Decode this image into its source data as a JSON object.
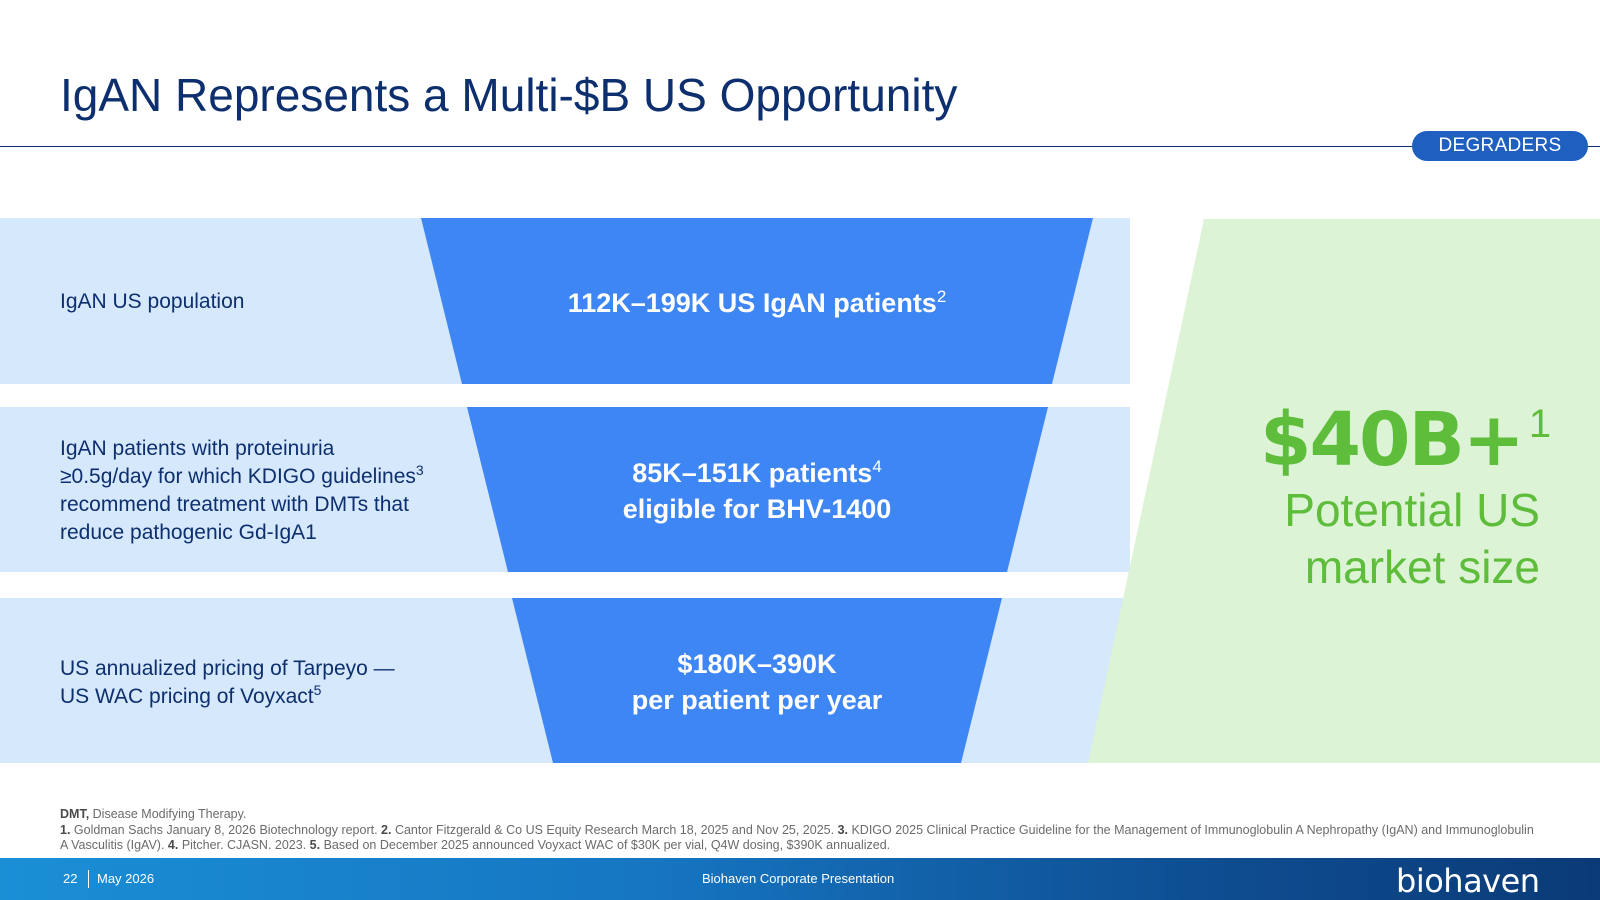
{
  "header": {
    "title": "IgAN Represents a Multi-$B US Opportunity",
    "badge": "DEGRADERS"
  },
  "rows": [
    {
      "label_lines": [
        "IgAN US population"
      ],
      "funnel_main": "112K–199K US IgAN patients",
      "funnel_sup": "2",
      "funnel_line2": ""
    },
    {
      "label_lines": [
        "IgAN patients with proteinuria",
        "≥0.5g/day for which KDIGO guidelines",
        "recommend treatment with DMTs that",
        "reduce pathogenic Gd-IgA1"
      ],
      "label_sup": "3",
      "funnel_main": "85K–151K patients",
      "funnel_sup": "4",
      "funnel_line2": "eligible for BHV-1400"
    },
    {
      "label_lines": [
        "US annualized pricing of Tarpeyo —",
        "US WAC pricing of Voyxact"
      ],
      "label_sup": "5",
      "funnel_main": "$180K–390K",
      "funnel_line2": "per patient per year"
    }
  ],
  "market": {
    "value": "$40B+",
    "value_sup": "1",
    "caption_line1": "Potential US",
    "caption_line2": "market size"
  },
  "footnotes": {
    "dmt_abbr": "DMT,",
    "dmt_def": " Disease Modifying Therapy.",
    "n1": "1.",
    "t1": " Goldman Sachs January 8, 2026 Biotechnology report. ",
    "n2": "2.",
    "t2": " Cantor Fitzgerald & Co US Equity Research March 18, 2025 and Nov 25, 2025. ",
    "n3": "3.",
    "t3": " KDIGO 2025 Clinical Practice Guideline for the Management of Immunoglobulin A Nephropathy (IgAN) and Immunoglobulin A Vasculitis (IgAV). ",
    "n4": "4.",
    "t4": " Pitcher. CJASN. 2023. ",
    "n5": "5.",
    "t5": " Based on December 2025 announced Voyxact WAC of $30K per vial, Q4W dosing, $390K annualized."
  },
  "footer": {
    "page_number": "22",
    "date": "May 2026",
    "presentation": "Biohaven Corporate Presentation",
    "logo_text": "biohaven"
  },
  "colors": {
    "navy": "#0d2f6e",
    "funnel_blue": "#3f86f5",
    "row_light_blue": "#d6e8fc",
    "green_text": "#5fbd3c",
    "green_bg": "#ddf3d6"
  }
}
